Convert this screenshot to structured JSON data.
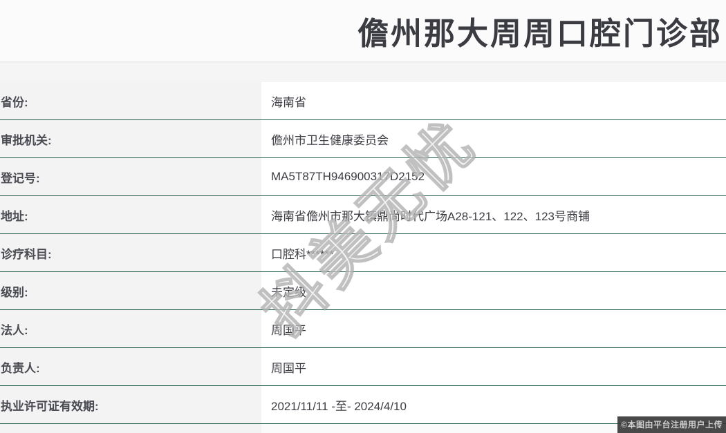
{
  "page": {
    "title": "儋州那大周周口腔门诊部",
    "watermark": "抖美无忧",
    "copyright_badge": "©本图由平台注册用户上传"
  },
  "colors": {
    "row_border_green": "#1e5c46",
    "label_column_bg": "#f2f3f2",
    "top_strip_bg": "#f5f5f5",
    "label_text": "#4a4a52",
    "value_text": "#3d3d44",
    "title_text": "#3b3b42",
    "badge_bg": "#303030",
    "badge_text": "#cfcfcf"
  },
  "table": {
    "rows": [
      {
        "label": "省份:",
        "value": "海南省"
      },
      {
        "label": "审批机关:",
        "value": "儋州市卫生健康委员会"
      },
      {
        "label": "登记号:",
        "value": "MA5T87TH946900317D2152"
      },
      {
        "label": "地址:",
        "value": "海南省儋州市那大镇鼎尚时代广场A28-121、122、123号商铺"
      },
      {
        "label": "诊疗科目:",
        "value": "口腔科******"
      },
      {
        "label": "级别:",
        "value": "未定级"
      },
      {
        "label": "法人:",
        "value": "周国平"
      },
      {
        "label": "负责人:",
        "value": "周国平"
      },
      {
        "label": "执业许可证有效期:",
        "value": "2021/11/11 -至- 2024/4/10"
      }
    ]
  }
}
